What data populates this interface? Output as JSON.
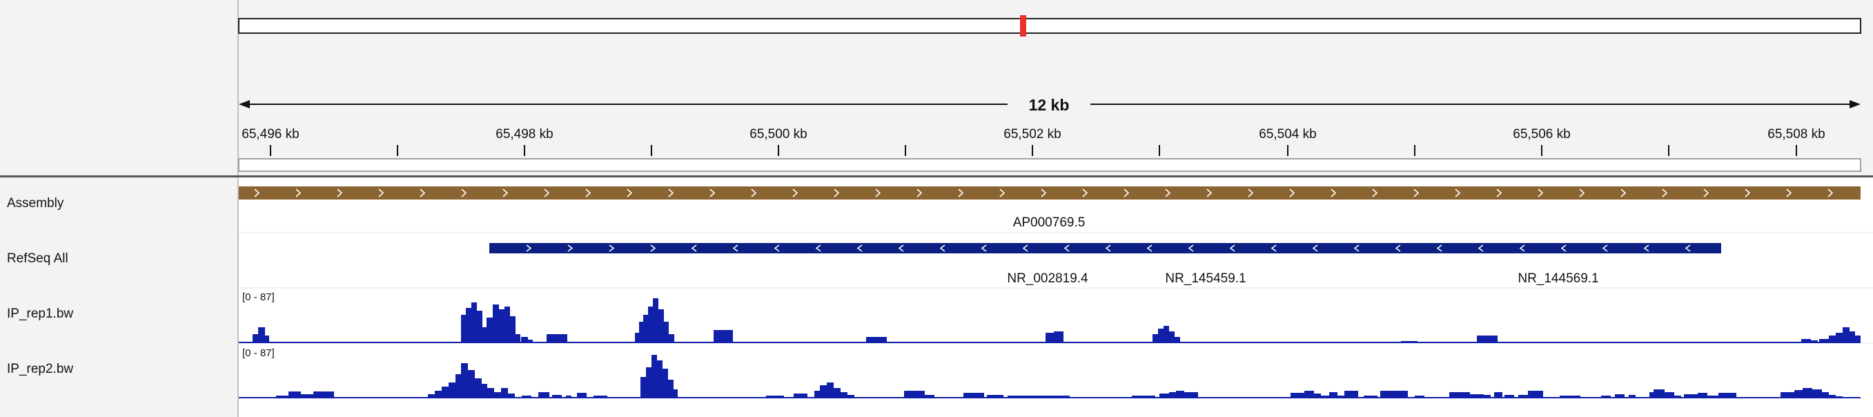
{
  "ruler": {
    "span_label": "12 kb"
  },
  "ticks": [
    "65,496 kb",
    "65,498 kb",
    "65,500 kb",
    "65,502 kb",
    "65,504 kb",
    "65,506 kb",
    "65,508 kb"
  ],
  "tracks": {
    "assembly": {
      "name": "Assembly",
      "feature_label": "AP000769.5",
      "color": "#8b6531"
    },
    "refseq": {
      "name": "RefSeq All",
      "color": "#0c1f82",
      "gene_labels": [
        "NR_002819.4",
        "NR_145459.1",
        "NR_144569.1"
      ]
    },
    "ip_rep1": {
      "name": "IP_rep1.bw",
      "range": "[0 - 87]",
      "color": "#1020a8"
    },
    "ip_rep2": {
      "name": "IP_rep2.bw",
      "range": "[0 - 87]",
      "color": "#1020a8"
    }
  },
  "locus_marker_color": "#e8322b"
}
